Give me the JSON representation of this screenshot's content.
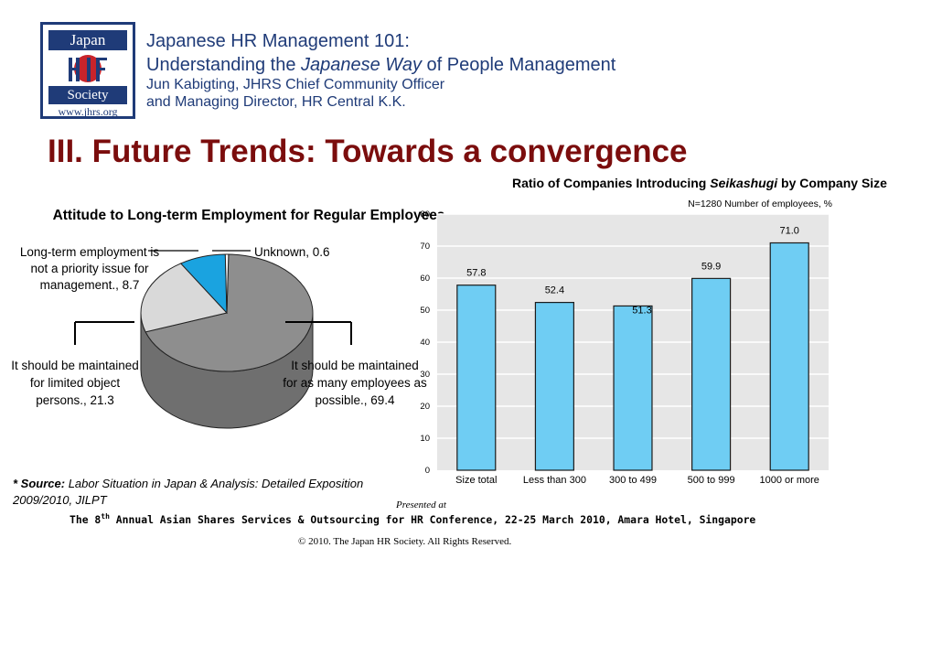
{
  "logo": {
    "top_text": "Japan",
    "bottom_text": "Society",
    "url": "www.jhrs.org"
  },
  "header": {
    "line1": "Japanese HR Management 101:",
    "line2_pre": "Understanding the ",
    "line2_italic": "Japanese Way",
    "line2_post": " of People Management",
    "line3": "Jun Kabigting, JHRS Chief Community Officer",
    "line4": "and Managing Director, HR Central K.K."
  },
  "slide_title": "III. Future Trends: Towards a convergence",
  "chart_data": [
    {
      "type": "pie",
      "title": "Attitude to Long-term Employment for Regular Employees",
      "slices": [
        {
          "label": "It should be maintained for as many employees as possible.",
          "value": 69.4,
          "color": "#8e8e8e"
        },
        {
          "label": "It should be maintained for limited object persons.",
          "value": 21.3,
          "color": "#d9d9d9"
        },
        {
          "label": "Long-term employment is not a priority issue for management.",
          "value": 8.7,
          "color": "#1aa3e0"
        },
        {
          "label": "Unknown",
          "value": 0.6,
          "color": "#ffffff"
        }
      ],
      "labels_text": {
        "not_priority": [
          "Long-term employment is",
          "not a priority issue for",
          "management., 8.7"
        ],
        "unknown": [
          "Unknown, 0.6"
        ],
        "limited": [
          "It should be maintained",
          "for limited object",
          "persons., 21.3"
        ],
        "many": [
          "It should be maintained",
          "for as many employees as",
          "possible., 69.4"
        ]
      }
    },
    {
      "type": "bar",
      "title_pre": "Ratio of Companies Introducing ",
      "title_italic": "Seikashugi",
      "title_post": " by Company Size",
      "note": "N=1280 Number of employees, %",
      "categories": [
        "Size total",
        "Less than 300",
        "300 to 499",
        "500 to 999",
        "1000 or more"
      ],
      "values": [
        57.8,
        52.4,
        51.3,
        59.9,
        71.0
      ],
      "value_labels": [
        "57.8",
        "52.4",
        "51.3",
        "59.9",
        "71.0"
      ],
      "ylim": [
        0,
        80
      ],
      "yticks": [
        "0",
        "10",
        "20",
        "30",
        "40",
        "50",
        "60",
        "70",
        "80"
      ],
      "bar_color": "#6fcdf3",
      "grid": true
    }
  ],
  "source": {
    "label": "* Source:",
    "text": " Labor Situation in Japan & Analysis: Detailed Exposition 2009/2010, JILPT"
  },
  "footer": {
    "presented": "Presented at",
    "conf_pre": "The 8",
    "conf_sup": "th",
    "conf_post": " Annual Asian Shares Services & Outsourcing for HR Conference, 22-25 March 2010, Amara Hotel, Singapore",
    "copyright": "© 2010. The Japan HR Society. All Rights Reserved."
  }
}
